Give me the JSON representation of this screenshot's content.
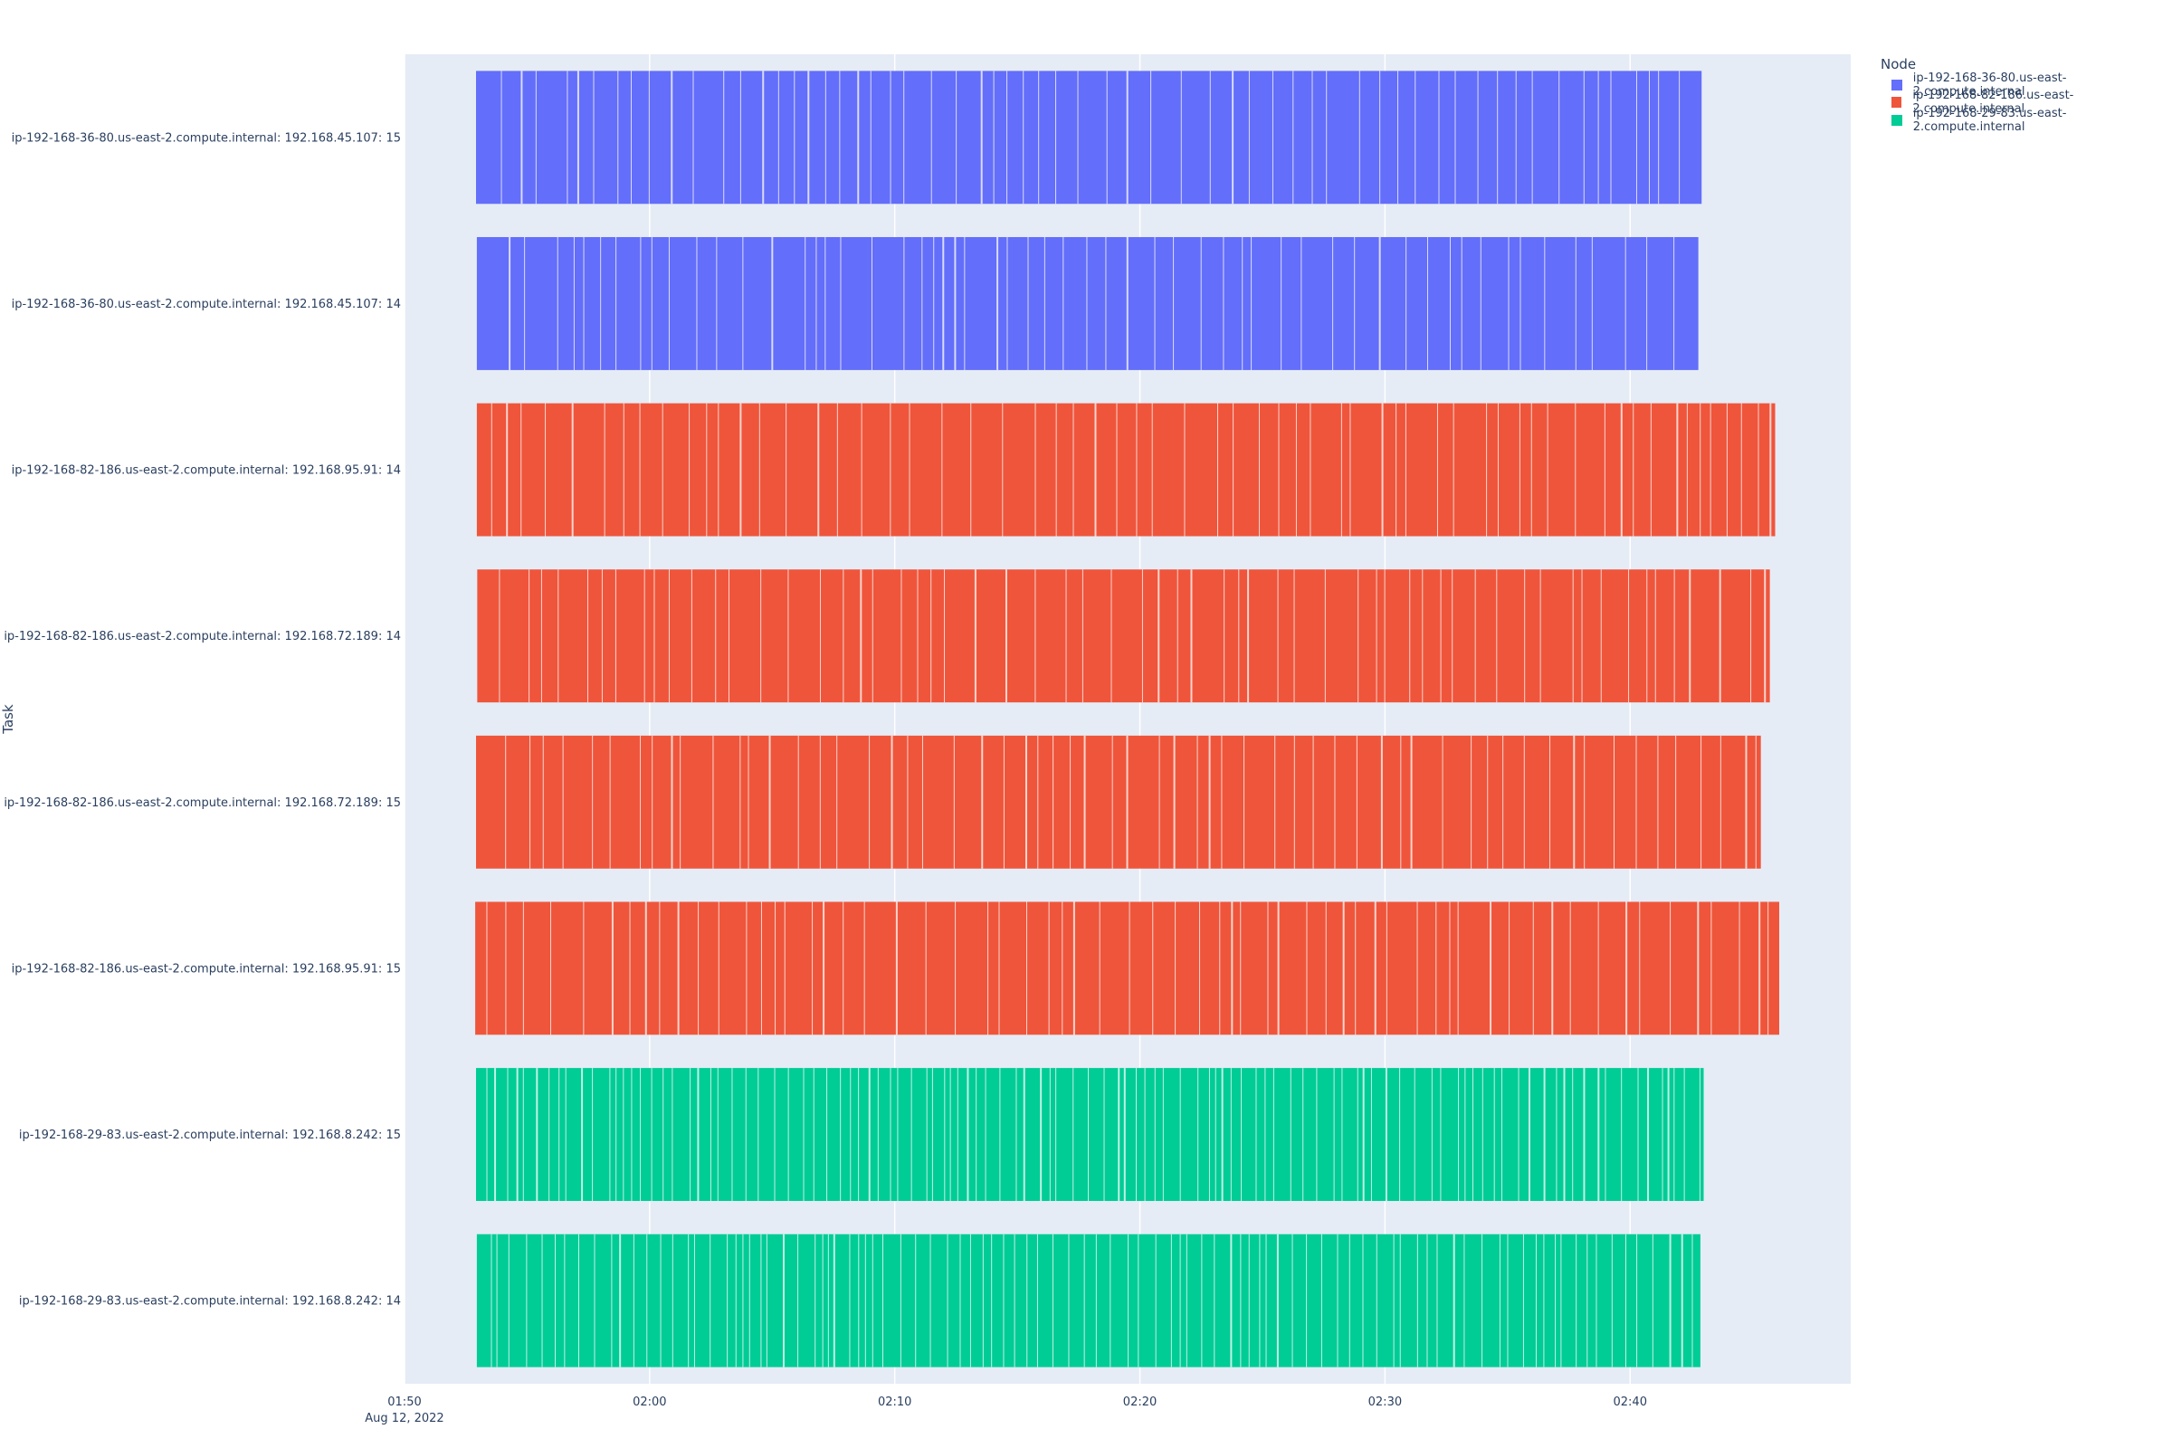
{
  "chart_data": {
    "type": "bar",
    "orientation": "horizontal-timeline",
    "title": "",
    "xlabel": "",
    "ylabel": "Task",
    "x_ticks": [
      {
        "time": "01:50",
        "date": "Aug 12, 2022"
      },
      {
        "time": "02:00",
        "date": ""
      },
      {
        "time": "02:10",
        "date": ""
      },
      {
        "time": "02:20",
        "date": ""
      },
      {
        "time": "02:30",
        "date": ""
      },
      {
        "time": "02:40",
        "date": ""
      }
    ],
    "xlim": [
      "2022-08-12 01:50",
      "2022-08-12 02:49"
    ],
    "legend": {
      "title": "Node",
      "placement": "top-right-outside",
      "entries": [
        {
          "name": "ip-192-168-36-80.us-east-2.compute.internal",
          "color": "#636efa"
        },
        {
          "name": "ip-192-168-82-186.us-east-2.compute.internal",
          "color": "#ef553b"
        },
        {
          "name": "ip-192-168-29-83.us-east-2.compute.internal",
          "color": "#00cc96"
        }
      ]
    },
    "tasks": [
      {
        "label": "ip-192-168-36-80.us-east-2.compute.internal: 192.168.45.107: 15",
        "node": 0,
        "start": "2022-08-12 01:52:55",
        "end": "2022-08-12 02:42:55"
      },
      {
        "label": "ip-192-168-36-80.us-east-2.compute.internal: 192.168.45.107: 14",
        "node": 0,
        "start": "2022-08-12 01:52:57",
        "end": "2022-08-12 02:42:47"
      },
      {
        "label": "ip-192-168-82-186.us-east-2.compute.internal: 192.168.95.91: 14",
        "node": 1,
        "start": "2022-08-12 01:52:57",
        "end": "2022-08-12 02:45:55"
      },
      {
        "label": "ip-192-168-82-186.us-east-2.compute.internal: 192.168.72.189: 14",
        "node": 1,
        "start": "2022-08-12 01:52:58",
        "end": "2022-08-12 02:45:42"
      },
      {
        "label": "ip-192-168-82-186.us-east-2.compute.internal: 192.168.72.189: 15",
        "node": 1,
        "start": "2022-08-12 01:52:55",
        "end": "2022-08-12 02:45:20"
      },
      {
        "label": "ip-192-168-82-186.us-east-2.compute.internal: 192.168.95.91: 15",
        "node": 1,
        "start": "2022-08-12 01:52:53",
        "end": "2022-08-12 02:46:05"
      },
      {
        "label": "ip-192-168-29-83.us-east-2.compute.internal: 192.168.8.242: 15",
        "node": 2,
        "start": "2022-08-12 01:52:55",
        "end": "2022-08-12 02:43:00"
      },
      {
        "label": "ip-192-168-29-83.us-east-2.compute.internal: 192.168.8.242: 14",
        "node": 2,
        "start": "2022-08-12 01:52:57",
        "end": "2022-08-12 02:42:52"
      }
    ],
    "grid": true,
    "background": "#e5ecf6"
  }
}
